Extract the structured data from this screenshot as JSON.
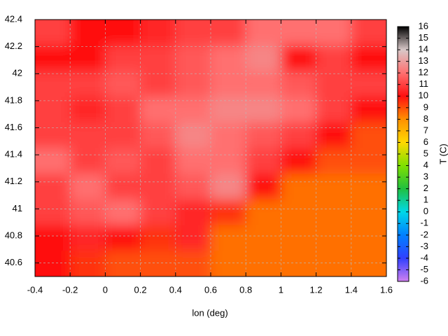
{
  "chart_data": {
    "type": "heatmap",
    "xlabel": "lon (deg)",
    "zlabel": "T (C)",
    "xbins": [
      -0.4,
      -0.2,
      0,
      0.2,
      0.4,
      0.6,
      0.8,
      1,
      1.2,
      1.4,
      1.6
    ],
    "ybins": [
      42.4,
      42.21,
      42.02,
      41.83,
      41.64,
      41.45,
      41.26,
      41.07,
      40.88,
      40.69,
      40.5
    ],
    "z": [
      [
        11,
        10,
        10,
        10.5,
        11,
        11,
        12,
        12,
        12,
        11
      ],
      [
        10,
        10,
        11,
        11,
        11.5,
        12,
        12.5,
        10,
        11,
        10
      ],
      [
        11,
        11,
        11.5,
        11,
        11.5,
        12,
        12,
        11.5,
        11,
        11
      ],
      [
        11,
        10.5,
        11,
        12,
        12,
        12.5,
        12.5,
        12,
        11,
        10
      ],
      [
        11,
        11,
        11,
        11.5,
        12.5,
        12,
        11.5,
        11,
        10,
        9
      ],
      [
        12,
        11,
        11.5,
        11,
        12,
        12,
        11,
        10,
        9,
        9
      ],
      [
        11,
        12,
        11,
        11,
        11.5,
        12.5,
        10,
        8.5,
        8.5,
        8.5
      ],
      [
        11,
        11.5,
        12,
        11,
        10.5,
        9.5,
        8.5,
        8.5,
        8.5,
        8.5
      ],
      [
        10,
        10.5,
        10,
        9.5,
        10.5,
        8.5,
        8.5,
        8.5,
        8.5,
        8.5
      ],
      [
        10,
        9.5,
        9,
        9,
        9,
        8.5,
        8.5,
        8.5,
        8.5,
        8.5
      ]
    ],
    "xlim": [
      -0.4,
      1.6
    ],
    "ylim": [
      40.5,
      42.4
    ],
    "zlim": [
      -6,
      16
    ],
    "xticks": [
      -0.4,
      -0.2,
      0,
      0.2,
      0.4,
      0.6,
      0.8,
      1,
      1.2,
      1.4,
      1.6
    ],
    "yticks": [
      40.6,
      40.8,
      41,
      41.2,
      41.4,
      41.6,
      41.8,
      42,
      42.2,
      42.4
    ],
    "zticks": [
      -6,
      -5,
      -4,
      -3,
      -2,
      -1,
      0,
      1,
      2,
      3,
      4,
      5,
      6,
      7,
      8,
      9,
      10,
      11,
      12,
      13,
      14,
      15,
      16
    ],
    "colormap": [
      "#d080f0",
      "#3040ff",
      "#0080ff",
      "#00d8e8",
      "#20c040",
      "#80e000",
      "#ffd800",
      "#ff9000",
      "#ff1010",
      "#ff7070",
      "#d8c8c8",
      "#000000"
    ],
    "grid": true
  }
}
